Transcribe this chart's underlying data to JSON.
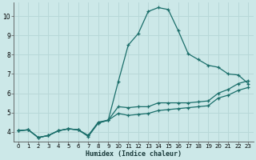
{
  "xlabel": "Humidex (Indice chaleur)",
  "bg_color": "#cce8e8",
  "grid_color": "#b8d8d8",
  "line_color": "#1a6e6a",
  "xlim": [
    -0.5,
    23.5
  ],
  "ylim": [
    3.5,
    10.7
  ],
  "xticks": [
    0,
    1,
    2,
    3,
    4,
    5,
    6,
    7,
    8,
    9,
    10,
    11,
    12,
    13,
    14,
    15,
    16,
    17,
    18,
    19,
    20,
    21,
    22,
    23
  ],
  "yticks": [
    4,
    5,
    6,
    7,
    8,
    9,
    10
  ],
  "series": [
    [
      4.05,
      4.1,
      3.7,
      3.8,
      4.05,
      4.15,
      4.1,
      3.8,
      4.5,
      4.6,
      6.6,
      8.5,
      9.1,
      10.25,
      10.45,
      10.35,
      9.25,
      8.05,
      7.75,
      7.45,
      7.35,
      7.0,
      6.95,
      6.5
    ],
    [
      4.05,
      4.1,
      3.7,
      3.8,
      4.05,
      4.15,
      4.1,
      3.8,
      4.45,
      4.6,
      5.3,
      5.25,
      5.3,
      5.3,
      5.5,
      5.5,
      5.5,
      5.5,
      5.55,
      5.6,
      6.0,
      6.2,
      6.5,
      6.65
    ],
    [
      4.05,
      4.1,
      3.7,
      3.8,
      4.05,
      4.15,
      4.1,
      3.75,
      4.45,
      4.6,
      4.95,
      4.85,
      4.9,
      4.95,
      5.1,
      5.15,
      5.2,
      5.25,
      5.3,
      5.35,
      5.75,
      5.9,
      6.15,
      6.3
    ]
  ]
}
